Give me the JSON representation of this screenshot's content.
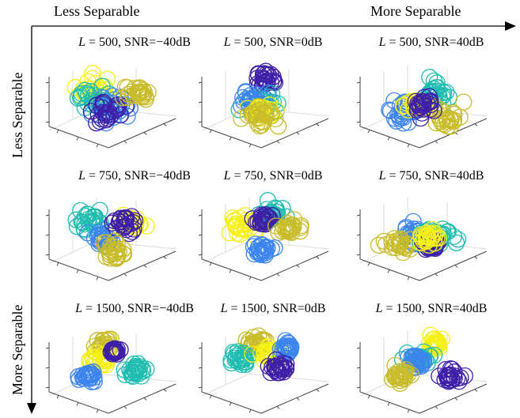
{
  "header": {
    "top_left": "Less Separable",
    "top_right": "More Separable",
    "left_top": "Less Separable",
    "left_bottom": "More Separable"
  },
  "colors": {
    "purple": "#3d1fa8",
    "blue": "#3c84ee",
    "cyan": "#1fbcb0",
    "olive": "#c8bc2a",
    "yellow": "#f5f016",
    "axis": "#444444",
    "grid": "#dddddd"
  },
  "panels": [
    {
      "L": "500",
      "snr": "SNR=−40dB"
    },
    {
      "L": "500",
      "snr": "SNR=0dB"
    },
    {
      "L": "500",
      "snr": "SNR=40dB"
    },
    {
      "L": "750",
      "snr": "SNR=−40dB"
    },
    {
      "L": "750",
      "snr": "SNR=0dB"
    },
    {
      "L": "750",
      "snr": "SNR=40dB"
    },
    {
      "L": "1500",
      "snr": "SNR=−40dB"
    },
    {
      "L": "1500",
      "snr": "SNR=0dB"
    },
    {
      "L": "1500",
      "snr": "SNR=40dB"
    }
  ],
  "chart_data": {
    "type": "scatter",
    "note_series": [
      "purple",
      "blue",
      "cyan",
      "olive",
      "yellow"
    ],
    "panels": [
      {
        "clusters": [
          {
            "color": "yellow",
            "cx": 0.35,
            "cy": 0.35,
            "spread": 0.2
          },
          {
            "color": "cyan",
            "cx": 0.35,
            "cy": 0.45,
            "spread": 0.18
          },
          {
            "color": "blue",
            "cx": 0.5,
            "cy": 0.55,
            "spread": 0.2
          },
          {
            "color": "purple",
            "cx": 0.45,
            "cy": 0.6,
            "spread": 0.18
          },
          {
            "color": "olive",
            "cx": 0.72,
            "cy": 0.38,
            "spread": 0.12
          }
        ]
      },
      {
        "clusters": [
          {
            "color": "purple",
            "cx": 0.5,
            "cy": 0.2,
            "spread": 0.15
          },
          {
            "color": "cyan",
            "cx": 0.5,
            "cy": 0.52,
            "spread": 0.15
          },
          {
            "color": "blue",
            "cx": 0.38,
            "cy": 0.48,
            "spread": 0.12
          },
          {
            "color": "yellow",
            "cx": 0.45,
            "cy": 0.62,
            "spread": 0.12
          },
          {
            "color": "olive",
            "cx": 0.48,
            "cy": 0.7,
            "spread": 0.15
          }
        ]
      },
      {
        "clusters": [
          {
            "color": "cyan",
            "cx": 0.62,
            "cy": 0.38,
            "spread": 0.14
          },
          {
            "color": "blue",
            "cx": 0.3,
            "cy": 0.62,
            "spread": 0.15
          },
          {
            "color": "olive",
            "cx": 0.7,
            "cy": 0.68,
            "spread": 0.16
          },
          {
            "color": "yellow",
            "cx": 0.45,
            "cy": 0.55,
            "spread": 0.14
          },
          {
            "color": "purple",
            "cx": 0.5,
            "cy": 0.52,
            "spread": 0.13
          }
        ]
      },
      {
        "clusters": [
          {
            "color": "cyan",
            "cx": 0.28,
            "cy": 0.28,
            "spread": 0.16
          },
          {
            "color": "blue",
            "cx": 0.42,
            "cy": 0.52,
            "spread": 0.12
          },
          {
            "color": "yellow",
            "cx": 0.7,
            "cy": 0.35,
            "spread": 0.1
          },
          {
            "color": "purple",
            "cx": 0.62,
            "cy": 0.35,
            "spread": 0.12
          },
          {
            "color": "olive",
            "cx": 0.52,
            "cy": 0.72,
            "spread": 0.13
          }
        ]
      },
      {
        "clusters": [
          {
            "color": "cyan",
            "cx": 0.55,
            "cy": 0.22,
            "spread": 0.1
          },
          {
            "color": "yellow",
            "cx": 0.28,
            "cy": 0.38,
            "spread": 0.14
          },
          {
            "color": "purple",
            "cx": 0.48,
            "cy": 0.28,
            "spread": 0.1
          },
          {
            "color": "olive",
            "cx": 0.72,
            "cy": 0.4,
            "spread": 0.13
          },
          {
            "color": "blue",
            "cx": 0.48,
            "cy": 0.7,
            "spread": 0.11
          }
        ]
      },
      {
        "clusters": [
          {
            "color": "blue",
            "cx": 0.42,
            "cy": 0.5,
            "spread": 0.14
          },
          {
            "color": "olive",
            "cx": 0.28,
            "cy": 0.62,
            "spread": 0.14
          },
          {
            "color": "cyan",
            "cx": 0.65,
            "cy": 0.55,
            "spread": 0.15
          },
          {
            "color": "purple",
            "cx": 0.55,
            "cy": 0.62,
            "spread": 0.12
          },
          {
            "color": "yellow",
            "cx": 0.52,
            "cy": 0.52,
            "spread": 0.11
          }
        ]
      },
      {
        "clusters": [
          {
            "color": "olive",
            "cx": 0.42,
            "cy": 0.2,
            "spread": 0.1
          },
          {
            "color": "yellow",
            "cx": 0.38,
            "cy": 0.4,
            "spread": 0.1
          },
          {
            "color": "blue",
            "cx": 0.28,
            "cy": 0.6,
            "spread": 0.09
          },
          {
            "color": "cyan",
            "cx": 0.72,
            "cy": 0.52,
            "spread": 0.11
          },
          {
            "color": "purple",
            "cx": 0.52,
            "cy": 0.28,
            "spread": 0.05
          }
        ]
      },
      {
        "clusters": [
          {
            "color": "olive",
            "cx": 0.42,
            "cy": 0.18,
            "spread": 0.09
          },
          {
            "color": "cyan",
            "cx": 0.28,
            "cy": 0.38,
            "spread": 0.1
          },
          {
            "color": "yellow",
            "cx": 0.52,
            "cy": 0.3,
            "spread": 0.1
          },
          {
            "color": "blue",
            "cx": 0.7,
            "cy": 0.25,
            "spread": 0.08
          },
          {
            "color": "purple",
            "cx": 0.62,
            "cy": 0.5,
            "spread": 0.09
          }
        ]
      },
      {
        "clusters": [
          {
            "color": "yellow",
            "cx": 0.62,
            "cy": 0.18,
            "spread": 0.09
          },
          {
            "color": "cyan",
            "cx": 0.48,
            "cy": 0.38,
            "spread": 0.1
          },
          {
            "color": "blue",
            "cx": 0.44,
            "cy": 0.42,
            "spread": 0.08
          },
          {
            "color": "olive",
            "cx": 0.3,
            "cy": 0.6,
            "spread": 0.1
          },
          {
            "color": "purple",
            "cx": 0.75,
            "cy": 0.62,
            "spread": 0.1
          }
        ]
      }
    ]
  }
}
